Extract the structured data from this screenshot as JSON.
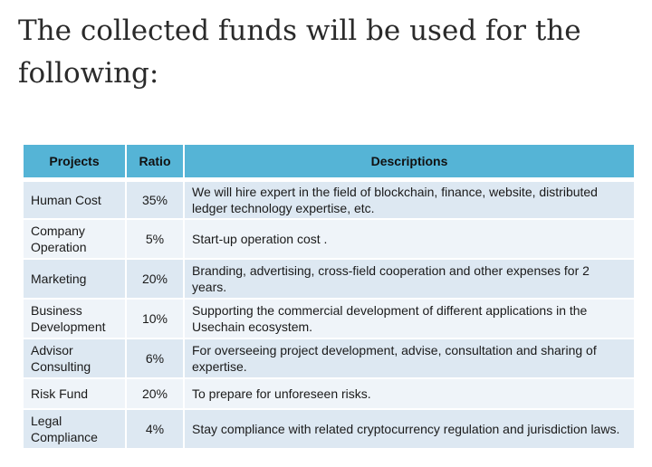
{
  "heading": "The collected funds will be used for the following:",
  "table": {
    "headers": {
      "projects": "Projects",
      "ratio": "Ratio",
      "descriptions": "Descriptions"
    },
    "rows": [
      {
        "project": "Human Cost",
        "ratio": "35%",
        "description": "We will hire expert in the field of blockchain, finance, website, distributed ledger technology expertise, etc."
      },
      {
        "project": "Company Operation",
        "ratio": "5%",
        "description": "Start-up operation cost ."
      },
      {
        "project": "Marketing",
        "ratio": "20%",
        "description": "Branding, advertising, cross-field cooperation and other expenses for 2 years."
      },
      {
        "project": "Business Development",
        "ratio": "10%",
        "description": "Supporting the commercial development of different applications in the Usechain ecosystem."
      },
      {
        "project": "Advisor Consulting",
        "ratio": "6%",
        "description": "For overseeing project development, advise, consultation and sharing of expertise."
      },
      {
        "project": "Risk Fund",
        "ratio": "20%",
        "description": "To prepare for unforeseen risks."
      },
      {
        "project": "Legal Compliance",
        "ratio": "4%",
        "description": "Stay compliance with related cryptocurrency regulation and jurisdiction laws."
      }
    ]
  }
}
